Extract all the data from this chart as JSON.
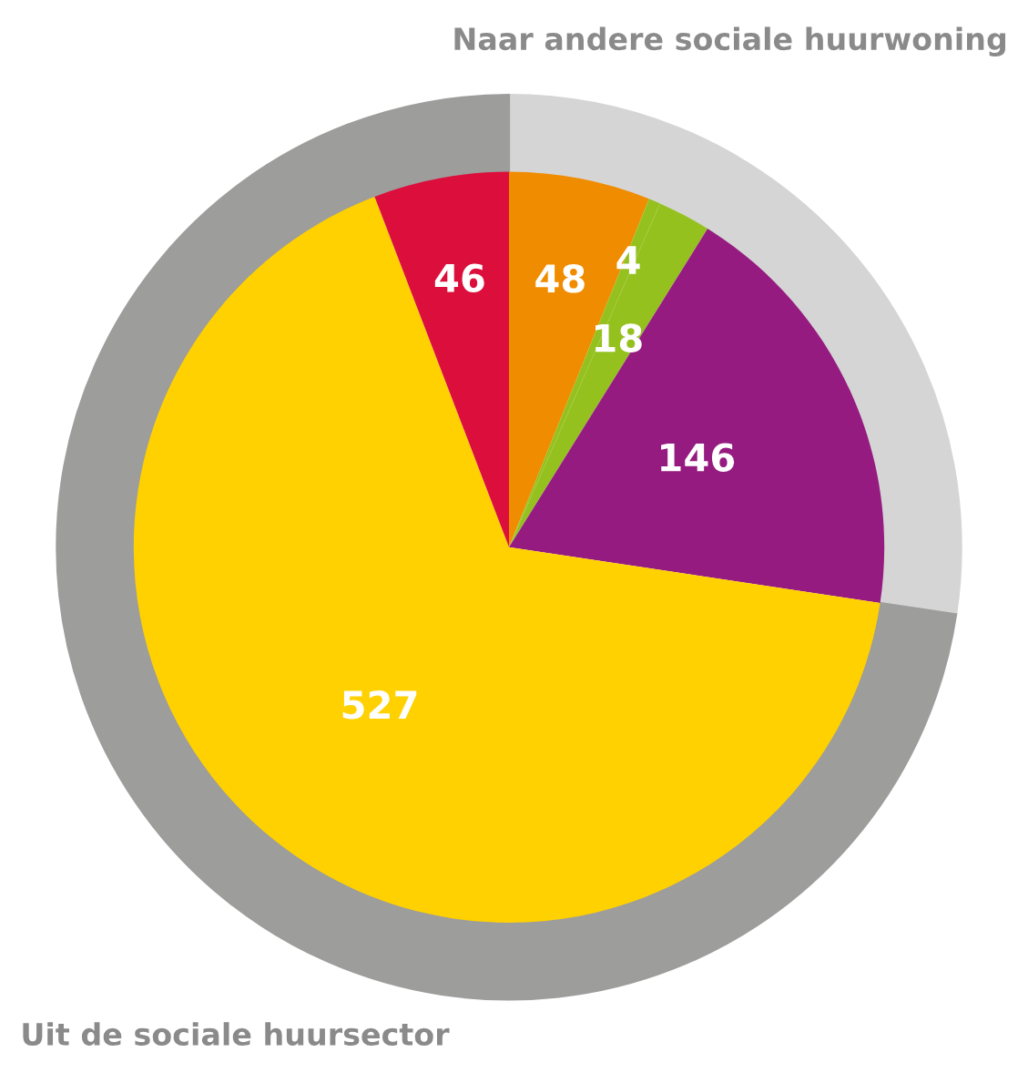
{
  "chart_data": {
    "type": "pie",
    "categories": [
      null,
      null,
      null,
      null,
      null,
      null
    ],
    "series": [
      {
        "values": [
          48,
          4,
          18,
          146,
          527,
          46
        ],
        "colors": [
          "#f08c00",
          "#95c11f",
          "#95c11f",
          "#951b81",
          "#ffd100",
          "#dc0f3c"
        ],
        "value_labels": [
          "48",
          "4",
          "18",
          "146",
          "527",
          "46"
        ]
      },
      {
        "type": "donut",
        "values": [
          6.08,
          0.51,
          2.28,
          18.5,
          66.8,
          5.83
        ],
        "colors": [
          "#d5d5d5",
          "#d5d5d5",
          "#d5d5d5",
          "#d5d5d5",
          "#9d9d9c",
          "#9d9d9c"
        ]
      }
    ],
    "annotations": [
      "Naar andere sociale huurwoning",
      "Uit de sociale huursector"
    ]
  }
}
